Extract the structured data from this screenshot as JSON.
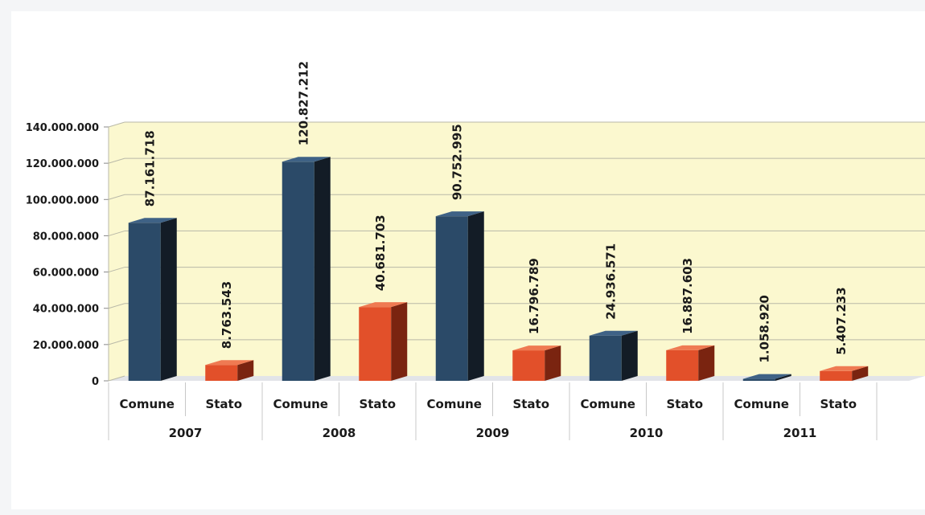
{
  "chart_data": {
    "type": "bar",
    "groups": [
      "2007",
      "2008",
      "2009",
      "2010",
      "2011"
    ],
    "sub_categories": [
      "Comune",
      "Stato"
    ],
    "series": [
      {
        "values": [
          87161718,
          120827212,
          90752995,
          24936571,
          1058920
        ],
        "labels": [
          "87.161.718",
          "120.827.212",
          "90.752.995",
          "24.936.571",
          "1.058.920"
        ]
      },
      {
        "values": [
          8763543,
          40681703,
          16796789,
          16887603,
          5407233
        ],
        "labels": [
          "8.763.543",
          "40.681.703",
          "16.796.789",
          "16.887.603",
          "5.407.233"
        ]
      }
    ],
    "y_ticks": [
      0,
      20000000,
      40000000,
      60000000,
      80000000,
      100000000,
      120000000,
      140000000
    ],
    "y_tick_labels": [
      "0",
      "20.000.000",
      "40.000.000",
      "60.000.000",
      "80.000.000",
      "100.000.000",
      "120.000.000",
      "140.000.000"
    ],
    "ylim": [
      0,
      140000000
    ],
    "grid": true,
    "legend": "none",
    "colors": {
      "comune_front": "#2b4a68",
      "comune_side": "#131c26",
      "comune_top": "#3f6286",
      "stato_front": "#e2502a",
      "stato_side": "#7a2410",
      "stato_top": "#ef7a52",
      "wall": "#fbf8cf",
      "floor": "#e2e4e8"
    }
  }
}
